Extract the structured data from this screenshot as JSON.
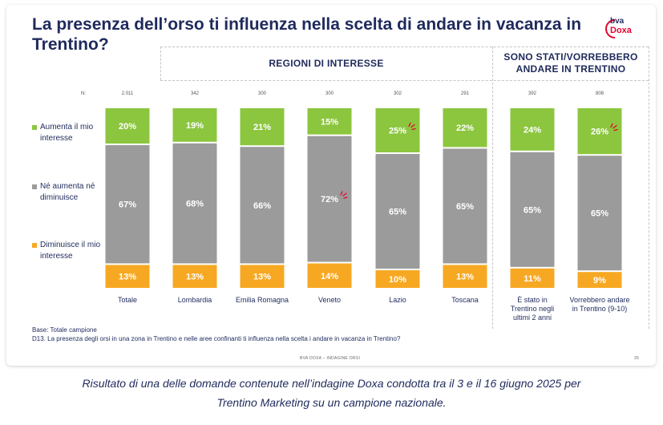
{
  "title": "La presenza dell’orso ti influenza nella scelta di andare in vacanza in Trentino?",
  "logo": {
    "top": "bva",
    "bottom": "Doxa"
  },
  "groups": {
    "regions": "REGIONI DI INTERESSE",
    "trentino": "SONO STATI/VORREBBERO ANDARE IN TRENTINO"
  },
  "legend": [
    {
      "label": "Aumenta il mio interesse",
      "color": "#8cc63f"
    },
    {
      "label": "Né aumenta né diminuisce",
      "color": "#9b9b9b"
    },
    {
      "label": "Diminuisce il mio interesse",
      "color": "#f7a823"
    }
  ],
  "chart_data": {
    "type": "bar",
    "stacked": true,
    "n_label": "N:",
    "categories": [
      "Totale",
      "Lombardia",
      "Emilia Romagna",
      "Veneto",
      "Lazio",
      "Toscana",
      "È stato in Trentino negli ultimi 2 anni",
      "Vorrebbero andare in Trentino (9-10)"
    ],
    "n_values": [
      "2.011",
      "342",
      "300",
      "300",
      "302",
      "291",
      "392",
      "808"
    ],
    "series": [
      {
        "name": "Aumenta il mio interesse",
        "color": "#8cc63f",
        "values": [
          20,
          19,
          21,
          15,
          25,
          22,
          24,
          26
        ]
      },
      {
        "name": "Né aumenta né diminuisce",
        "color": "#9b9b9b",
        "values": [
          67,
          68,
          66,
          72,
          65,
          65,
          65,
          65
        ]
      },
      {
        "name": "Diminuisce il mio interesse",
        "color": "#f7a823",
        "values": [
          13,
          13,
          13,
          14,
          10,
          13,
          11,
          9
        ]
      }
    ],
    "value_suffix": "%",
    "highlights": [
      {
        "category": "Lazio",
        "series": "Aumenta il mio interesse"
      },
      {
        "category": "Veneto",
        "series": "Né aumenta né diminuisce"
      },
      {
        "category": "Vorrebbero andare in Trentino (9-10)",
        "series": "Aumenta il mio interesse"
      }
    ],
    "ylim": [
      0,
      100
    ]
  },
  "footnote": {
    "base": "Base: Totale campione",
    "question": "D13. La presenza degli orsi in una zona in Trentino e nelle aree confinanti ti influenza nella scelta i andare in vacanza in Trentino?"
  },
  "page_footer": {
    "source": "BVA DOXA – INDAGINE ORSI",
    "page": "35"
  },
  "caption": [
    "Risultato di una delle domande contenute nell’indagine Doxa condotta tra il 3 e il 16 giugno 2025 per",
    "Trentino Marketing su un campione nazionale."
  ]
}
